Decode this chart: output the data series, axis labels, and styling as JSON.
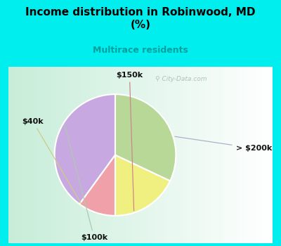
{
  "title": "Income distribution in Robinwood, MD\n(%)",
  "subtitle": "Multirace residents",
  "title_color": "#000000",
  "subtitle_color": "#00a0a0",
  "background_color": "#00eeee",
  "chart_bg_left": "#c8eed8",
  "chart_bg_right": "#f0faf8",
  "labels": [
    "> $200k",
    "$150k",
    "$40k",
    "$100k"
  ],
  "values": [
    40,
    10,
    18,
    32
  ],
  "colors": [
    "#c8a8e0",
    "#f0a0a8",
    "#f0f080",
    "#b8d898"
  ],
  "startangle": 90,
  "label_arrow_colors": [
    "#b0b0cc",
    "#cc8888",
    "#cccc88",
    "#b0c8b0"
  ],
  "watermark": "City-Data.com"
}
